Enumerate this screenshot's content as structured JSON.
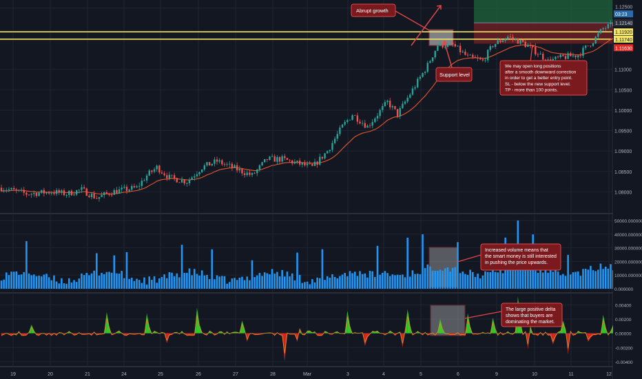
{
  "chart_data": [
    {
      "type": "candlestick",
      "pane": "price",
      "ylim": [
        1.075,
        1.127
      ],
      "y_ticks": [
        "1.08000",
        "1.08500",
        "1.09000",
        "1.09500",
        "1.10000",
        "1.10500",
        "1.11000",
        "1.12500"
      ],
      "price_labels": [
        {
          "text": "1.12500",
          "kind": "plain"
        },
        {
          "text": "03:23",
          "kind": "countdown"
        },
        {
          "text": "1.12140",
          "kind": "current"
        },
        {
          "text": "1.11920",
          "kind": "level"
        },
        {
          "text": "1.11740",
          "kind": "level"
        },
        {
          "text": "1.11630",
          "kind": "stop"
        }
      ],
      "horizontal_levels": [
        1.1192,
        1.1174
      ],
      "moving_average": "red EMA trailing price",
      "trend_anchors": [
        [
          0,
          1.081
        ],
        [
          10,
          1.0795
        ],
        [
          20,
          1.08
        ],
        [
          26,
          1.0795
        ],
        [
          32,
          1.0805
        ],
        [
          38,
          1.0785
        ],
        [
          44,
          1.08
        ],
        [
          54,
          1.081
        ],
        [
          58,
          1.084
        ],
        [
          62,
          1.086
        ],
        [
          67,
          1.0835
        ],
        [
          74,
          1.0825
        ],
        [
          80,
          1.086
        ],
        [
          86,
          1.0875
        ],
        [
          92,
          1.086
        ],
        [
          100,
          1.084
        ],
        [
          106,
          1.088
        ],
        [
          112,
          1.088
        ],
        [
          118,
          1.087
        ],
        [
          124,
          1.086
        ],
        [
          130,
          1.09
        ],
        [
          136,
          1.096
        ],
        [
          140,
          1.099
        ],
        [
          146,
          1.096
        ],
        [
          150,
          1.099
        ],
        [
          154,
          1.102
        ],
        [
          158,
          1.099
        ],
        [
          164,
          1.105
        ],
        [
          170,
          1.111
        ],
        [
          174,
          1.116
        ],
        [
          180,
          1.116
        ],
        [
          186,
          1.113
        ],
        [
          192,
          1.112
        ],
        [
          196,
          1.116
        ],
        [
          202,
          1.118
        ],
        [
          208,
          1.1165
        ],
        [
          214,
          1.114
        ],
        [
          218,
          1.112
        ],
        [
          224,
          1.113
        ],
        [
          230,
          1.1135
        ],
        [
          236,
          1.117
        ],
        [
          240,
          1.12
        ],
        [
          244,
          1.121
        ],
        [
          248,
          1.124
        ],
        [
          252,
          1.123
        ],
        [
          256,
          1.122
        ]
      ],
      "annotations": [
        {
          "text": "Abrupt growth"
        },
        {
          "text": "Support level"
        },
        {
          "text": [
            "We may open long positions",
            "after a smooth downward correction",
            "in order to get a better entry point.",
            "SL - below the new support level.",
            "TP - more than 100 points."
          ]
        }
      ]
    },
    {
      "type": "bar",
      "pane": "volume",
      "ylim": [
        0,
        52000
      ],
      "y_ticks": [
        "0.000000",
        "10000.000000",
        "20000.000000",
        "30000.000000",
        "40000.000000",
        "50000.000000"
      ],
      "annotation": [
        "Increased volume means that",
        "the smart money is still interested",
        "in pushing the price upwards."
      ]
    },
    {
      "type": "area",
      "pane": "delta",
      "ylim": [
        -0.0045,
        0.0055
      ],
      "y_ticks": [
        "0.00400",
        "0.00200",
        "0.00000",
        "-0.00200",
        "-0.00400"
      ],
      "annotation": [
        "The large positive delta",
        "shows that buyers are",
        "dominating the market."
      ]
    }
  ],
  "x_axis": {
    "labels": [
      "19",
      "20",
      "21",
      "24",
      "25",
      "26",
      "27",
      "28",
      "Mar",
      "3",
      "4",
      "5",
      "6",
      "9",
      "10",
      "11",
      "12"
    ]
  },
  "colors": {
    "background": "#131722",
    "grid": "#1f2433",
    "bull": "#26a69a",
    "bear": "#ef5350",
    "volume": "#2196f3",
    "ema": "#e6582e",
    "level": "#f5e663",
    "note_bg": "#7b1a1e",
    "note_border": "#e04848",
    "delta_pos": "#36d12a",
    "delta_neg": "#e22a22"
  }
}
